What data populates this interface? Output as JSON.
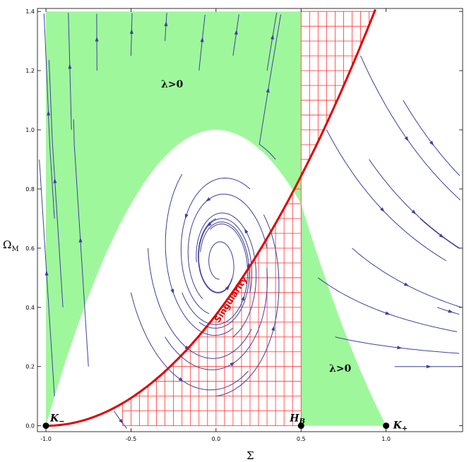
{
  "chart_data": {
    "type": "scatter",
    "subtype": "phase-portrait",
    "xlabel": "Σ",
    "ylabel": "Ω",
    "ylabel_subscript": "M",
    "xlim": [
      -1.05,
      1.45
    ],
    "ylim": [
      -0.02,
      1.41
    ],
    "xticks": [
      "-1.0",
      "-0.5",
      "0.0",
      "0.5",
      "1.0"
    ],
    "yticks": [
      "0.0",
      "0.2",
      "0.4",
      "0.6",
      "0.8",
      "1.0",
      "1.2",
      "1.4"
    ],
    "region_labels": [
      "λ>0",
      "λ>0"
    ],
    "curve_label": "Singularity",
    "points": [
      {
        "label": "K",
        "subscript": "−",
        "x": -1.0,
        "y": 0.0
      },
      {
        "label": "H",
        "subscript": "B",
        "x": 0.5,
        "y": 0.0
      },
      {
        "label": "K",
        "subscript": "+",
        "x": 1.0,
        "y": 0.0
      }
    ],
    "singularity_curve": "Ω = 3(1+Σ)²/8",
    "colors": {
      "lambda_region": "#9ff79c",
      "hatch": "#ff3030",
      "singularity": "#e00000",
      "streamlines": "#3f3f9c"
    }
  }
}
